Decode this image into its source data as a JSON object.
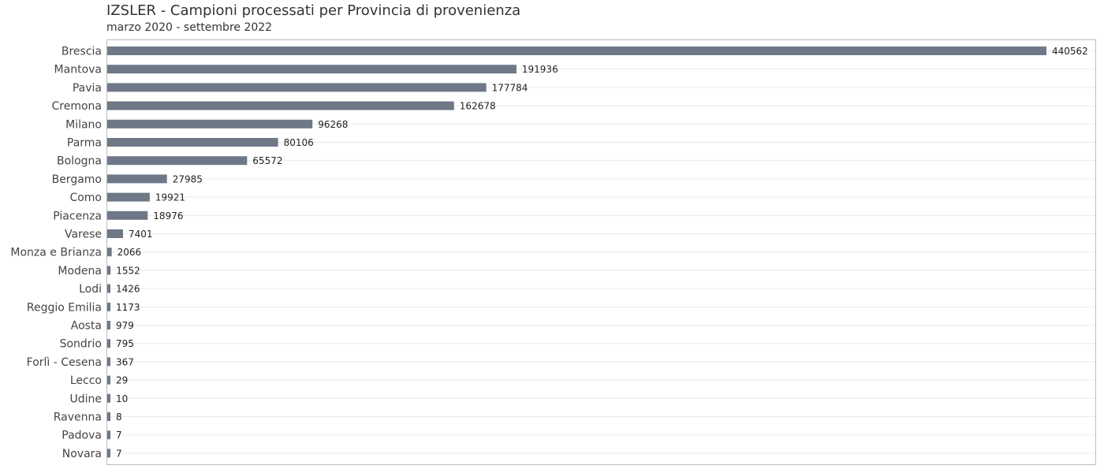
{
  "chart_data": {
    "type": "bar",
    "orientation": "horizontal",
    "title": "IZSLER - Campioni processati per Provincia di provenienza",
    "subtitle": "marzo 2020 - settembre 2022",
    "xlabel": "",
    "ylabel": "",
    "grid": true,
    "bar_color": "#6e7887",
    "categories": [
      "Brescia",
      "Mantova",
      "Pavia",
      "Cremona",
      "Milano",
      "Parma",
      "Bologna",
      "Bergamo",
      "Como",
      "Piacenza",
      "Varese",
      "Monza e Brianza",
      "Modena",
      "Lodi",
      "Reggio Emilia",
      "Aosta",
      "Sondrio",
      "Forlì - Cesena",
      "Lecco",
      "Udine",
      "Ravenna",
      "Padova",
      "Novara"
    ],
    "values": [
      440562,
      191936,
      177784,
      162678,
      96268,
      80106,
      65572,
      27985,
      19921,
      18976,
      7401,
      2066,
      1552,
      1426,
      1173,
      979,
      795,
      367,
      29,
      10,
      8,
      7,
      7
    ],
    "value_labels": [
      "440562",
      "191936",
      "177784",
      "162678",
      "96268",
      "80106",
      "65572",
      "27985",
      "19921",
      "18976",
      "7401",
      "2066",
      "1552",
      "1426",
      "1173",
      "979",
      "795",
      "367",
      "29",
      "10",
      "8",
      "7",
      "7"
    ]
  }
}
